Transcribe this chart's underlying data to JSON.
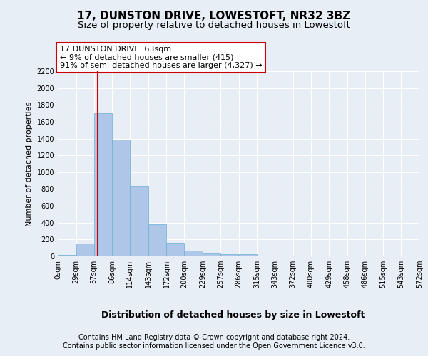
{
  "title": "17, DUNSTON DRIVE, LOWESTOFT, NR32 3BZ",
  "subtitle": "Size of property relative to detached houses in Lowestoft",
  "xlabel": "Distribution of detached houses by size in Lowestoft",
  "ylabel": "Number of detached properties",
  "footer_line1": "Contains HM Land Registry data © Crown copyright and database right 2024.",
  "footer_line2": "Contains public sector information licensed under the Open Government Licence v3.0.",
  "bin_edges": [
    0,
    29,
    57,
    86,
    114,
    143,
    172,
    200,
    229,
    257,
    286,
    315,
    343,
    372,
    400,
    429,
    458,
    486,
    515,
    543,
    572
  ],
  "bar_heights": [
    20,
    155,
    1700,
    1390,
    835,
    380,
    165,
    65,
    38,
    28,
    28,
    0,
    0,
    0,
    0,
    0,
    0,
    0,
    0,
    0
  ],
  "bar_color": "#aec6e8",
  "bar_edgecolor": "#6aafd6",
  "vline_x": 63,
  "vline_color": "#cc0000",
  "annotation_box_text": "17 DUNSTON DRIVE: 63sqm\n← 9% of detached houses are smaller (415)\n91% of semi-detached houses are larger (4,327) →",
  "ylim": [
    0,
    2200
  ],
  "yticks": [
    0,
    200,
    400,
    600,
    800,
    1000,
    1200,
    1400,
    1600,
    1800,
    2000,
    2200
  ],
  "bg_color": "#e8eef5",
  "plot_bg_color": "#e8eef5",
  "grid_color": "#ffffff",
  "title_fontsize": 11,
  "subtitle_fontsize": 9.5,
  "xlabel_fontsize": 9,
  "ylabel_fontsize": 8,
  "tick_fontsize": 7,
  "footer_fontsize": 7,
  "ann_fontsize": 8
}
